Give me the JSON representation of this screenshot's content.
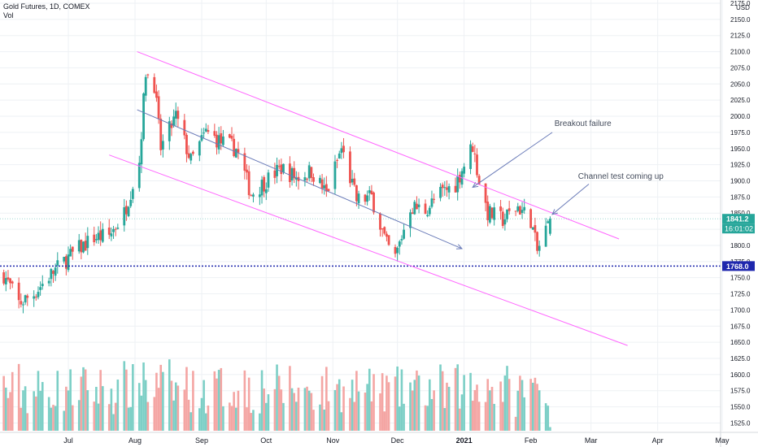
{
  "header": {
    "symbol": "Gold Futures, 1D, COMEX",
    "volume_label": "Vol"
  },
  "colors": {
    "up": "#26a69a",
    "down": "#ef5350",
    "up_vol": "#7ccfc6",
    "down_vol": "#f4a5a3",
    "channel": "#ff66ff",
    "median": "#6a7bb8",
    "support": "#1e27ad",
    "grid": "#eef1f4",
    "text": "#131722",
    "price_tag": "#26a69a",
    "clock_tag": "#26a69a",
    "support_tag": "#1e27ad"
  },
  "chart_data": {
    "type": "candlestick",
    "title": "Gold Futures, 1D, COMEX",
    "y_unit": "USD",
    "y_range": [
      1513,
      2180
    ],
    "y_ticks": [
      "2175.0",
      "2150.0",
      "2125.0",
      "2100.0",
      "2075.0",
      "2050.0",
      "2025.0",
      "2000.0",
      "1975.0",
      "1950.0",
      "1925.0",
      "1900.0",
      "1875.0",
      "1850.0",
      "1825.0",
      "1800.0",
      "1775.0",
      "1750.0",
      "1725.0",
      "1700.0",
      "1675.0",
      "1650.0",
      "1625.0",
      "1600.0",
      "1575.0",
      "1550.0",
      "1525.0"
    ],
    "x_ticks": [
      "Jul",
      "Aug",
      "Sep",
      "Oct",
      "Nov",
      "Dec",
      "2021",
      "Feb",
      "Mar",
      "Apr",
      "May"
    ],
    "last_price": "1841.2",
    "countdown": "16:01:02",
    "support_level": 1768.0,
    "support_label": "1768.0",
    "close_path": [
      [
        "2020-06-01",
        1755
      ],
      [
        "2020-06-08",
        1710
      ],
      [
        "2020-06-15",
        1725
      ],
      [
        "2020-06-22",
        1752
      ],
      [
        "2020-06-29",
        1775
      ],
      [
        "2020-07-06",
        1795
      ],
      [
        "2020-07-13",
        1812
      ],
      [
        "2020-07-20",
        1815
      ],
      [
        "2020-07-27",
        1850
      ],
      [
        "2020-08-03",
        1930
      ],
      [
        "2020-08-06",
        2070
      ],
      [
        "2020-08-10",
        2050
      ],
      [
        "2020-08-13",
        1950
      ],
      [
        "2020-08-20",
        2000
      ],
      [
        "2020-08-27",
        1930
      ],
      [
        "2020-09-03",
        1975
      ],
      [
        "2020-09-10",
        1960
      ],
      [
        "2020-09-17",
        1950
      ],
      [
        "2020-09-24",
        1880
      ],
      [
        "2020-10-01",
        1900
      ],
      [
        "2020-10-08",
        1920
      ],
      [
        "2020-10-15",
        1905
      ],
      [
        "2020-10-22",
        1915
      ],
      [
        "2020-10-29",
        1880
      ],
      [
        "2020-11-05",
        1950
      ],
      [
        "2020-11-12",
        1870
      ],
      [
        "2020-11-19",
        1875
      ],
      [
        "2020-11-26",
        1800
      ],
      [
        "2020-11-30",
        1780
      ],
      [
        "2020-12-07",
        1860
      ],
      [
        "2020-12-14",
        1855
      ],
      [
        "2020-12-21",
        1880
      ],
      [
        "2020-12-28",
        1895
      ],
      [
        "2021-01-05",
        1955
      ],
      [
        "2021-01-08",
        1900
      ],
      [
        "2021-01-12",
        1850
      ],
      [
        "2021-01-19",
        1840
      ],
      [
        "2021-01-26",
        1860
      ],
      [
        "2021-02-01",
        1840
      ],
      [
        "2021-02-04",
        1790
      ],
      [
        "2021-02-10",
        1841.2
      ]
    ],
    "volume_range": [
      0,
      12000
    ],
    "trendlines": [
      {
        "role": "channel-upper",
        "from": [
          "2020-08-02",
          2100
        ],
        "to": [
          "2021-03-14",
          1810
        ]
      },
      {
        "role": "channel-lower",
        "from": [
          "2020-07-20",
          1940
        ],
        "to": [
          "2021-03-18",
          1645
        ]
      },
      {
        "role": "median-arrow",
        "from": [
          "2020-08-02",
          2010
        ],
        "to": [
          "2020-12-31",
          1795
        ]
      },
      {
        "role": "annotation-arrow-1",
        "from": [
          "2021-02-11",
          1975
        ],
        "to": [
          "2021-01-05",
          1890
        ]
      },
      {
        "role": "annotation-arrow-2",
        "from": [
          "2021-02-28",
          1895
        ],
        "to": [
          "2021-02-11",
          1848
        ]
      }
    ],
    "annotations": [
      {
        "text": "Breakout failure",
        "at": [
          "2021-02-12",
          1985
        ]
      },
      {
        "text": "Channel test coming up",
        "at": [
          "2021-02-23",
          1903
        ]
      }
    ]
  }
}
